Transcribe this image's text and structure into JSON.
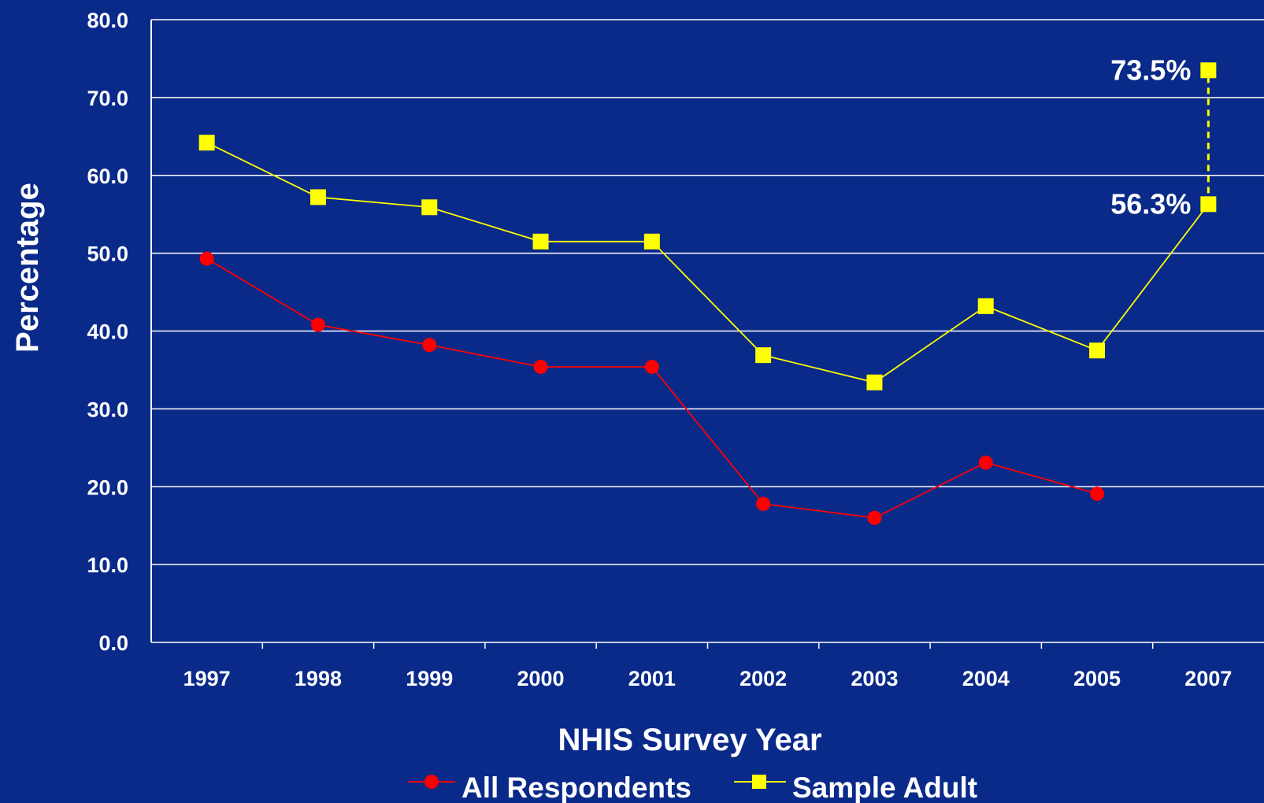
{
  "chart_data": {
    "type": "line",
    "title": "",
    "xlabel": "NHIS Survey Year",
    "ylabel": "Percentage",
    "categories": [
      "1997",
      "1998",
      "1999",
      "2000",
      "2001",
      "2002",
      "2003",
      "2004",
      "2005",
      "2007"
    ],
    "ylim": [
      0,
      80
    ],
    "yticks": [
      "0.0",
      "10.0",
      "20.0",
      "30.0",
      "40.0",
      "50.0",
      "60.0",
      "70.0",
      "80.0"
    ],
    "grid": true,
    "legend_position": "bottom",
    "series": [
      {
        "name": "All Respondents",
        "color": "#ff0000",
        "marker": "circle",
        "values": [
          49.3,
          40.8,
          38.2,
          35.4,
          35.4,
          17.8,
          16.0,
          23.1,
          19.1,
          null
        ]
      },
      {
        "name": "Sample Adult",
        "color": "#ffff00",
        "marker": "square",
        "values": [
          64.2,
          57.2,
          55.9,
          51.5,
          51.5,
          36.9,
          33.4,
          43.2,
          37.5,
          56.3
        ]
      }
    ],
    "extra_point": {
      "category": "2007",
      "value": 73.5,
      "label": "73.5%",
      "color": "#ffff00",
      "connector": "dashed"
    },
    "annotations": [
      {
        "text": "73.5%",
        "category": "2007",
        "value": 73.5
      },
      {
        "text": "56.3%",
        "category": "2007",
        "value": 56.3
      }
    ]
  },
  "colors": {
    "background": "#0a2a8a",
    "grid": "#ffffff",
    "text": "#ffffff"
  }
}
